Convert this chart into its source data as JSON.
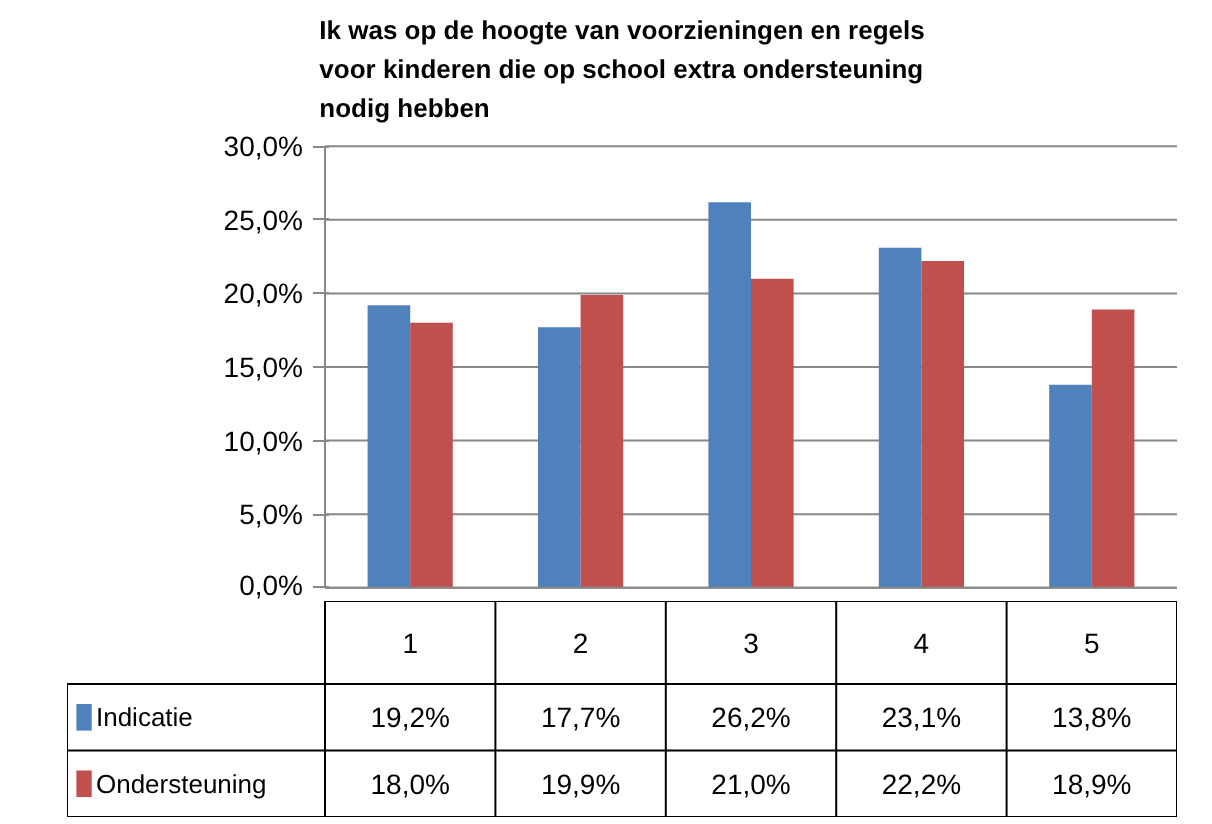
{
  "chart_data": {
    "type": "bar",
    "title": "Ik was op de hoogte van voorzieningen en regels\nvoor kinderen die op school extra ondersteuning\nnodig hebben",
    "categories": [
      "1",
      "2",
      "3",
      "4",
      "5"
    ],
    "series": [
      {
        "name": "Indicatie",
        "color": "#4f81bd",
        "values": [
          19.2,
          17.7,
          26.2,
          23.1,
          13.8
        ],
        "value_labels": [
          "19,2%",
          "17,7%",
          "26,2%",
          "23,1%",
          "13,8%"
        ]
      },
      {
        "name": "Ondersteuning",
        "color": "#c0504d",
        "values": [
          18.0,
          19.9,
          21.0,
          22.2,
          18.9
        ],
        "value_labels": [
          "18,0%",
          "19,9%",
          "21,0%",
          "22,2%",
          "18,9%"
        ]
      }
    ],
    "ylim": [
      0,
      30
    ],
    "yticks": [
      {
        "value": 0,
        "label": "0,0%"
      },
      {
        "value": 5,
        "label": "5,0%"
      },
      {
        "value": 10,
        "label": "10,0%"
      },
      {
        "value": 15,
        "label": "15,0%"
      },
      {
        "value": 20,
        "label": "20,0%"
      },
      {
        "value": 25,
        "label": "25,0%"
      },
      {
        "value": 30,
        "label": "30,0%"
      }
    ],
    "grid": "y",
    "legend": "bottom"
  }
}
